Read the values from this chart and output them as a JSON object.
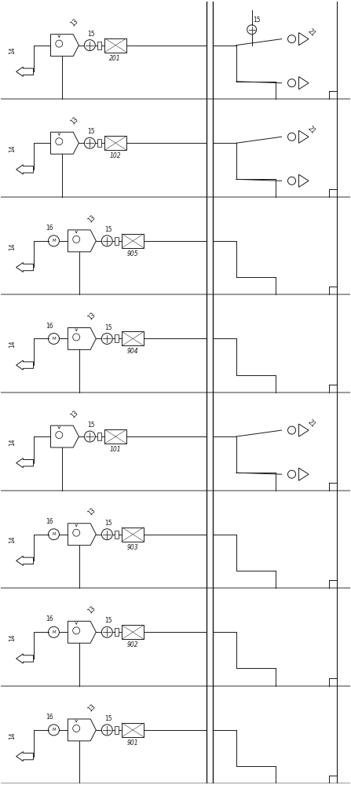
{
  "fig_width": 4.47,
  "fig_height": 10.0,
  "dpi": 100,
  "lc": "#1a1a1a",
  "lw": 0.7,
  "n_rows": 8,
  "row_labels": [
    "201",
    "102",
    "905",
    "904",
    "101",
    "903",
    "902",
    "901"
  ],
  "has_motor": [
    false,
    false,
    true,
    true,
    false,
    true,
    true,
    true
  ],
  "has_21_right": [
    true,
    true,
    false,
    false,
    true,
    false,
    false,
    false
  ],
  "has_15_top_right": [
    true,
    false,
    false,
    false,
    false,
    false,
    false,
    false
  ],
  "row_colors": [
    "#000000",
    "#000000",
    "#000000",
    "#000000",
    "#000000",
    "#000000",
    "#000000",
    "#000000"
  ]
}
